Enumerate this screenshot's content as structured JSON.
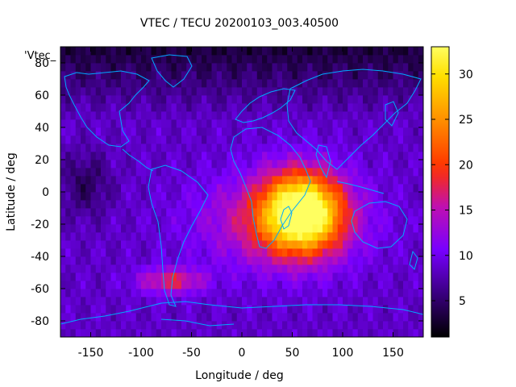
{
  "chart_data": {
    "type": "heatmap",
    "title": "VTEC / TECU 20200103_003.40500",
    "xlabel": "Longitude / deg",
    "ylabel": "Latitude / deg",
    "series_label": "'Vtec_",
    "xlim": [
      -180,
      180
    ],
    "ylim": [
      -90,
      90
    ],
    "xticks": [
      -150,
      -100,
      -50,
      0,
      50,
      100,
      150
    ],
    "yticks": [
      80,
      60,
      40,
      20,
      0,
      -20,
      -40,
      -60,
      -80
    ],
    "colorbar": {
      "range": [
        1,
        33
      ],
      "ticks": [
        5,
        10,
        15,
        20,
        25,
        30
      ],
      "palette": [
        "#000000",
        "#3a0080",
        "#7800ff",
        "#c010b0",
        "#ff3000",
        "#ff9000",
        "#ffe000",
        "#ffff60"
      ],
      "palette_stops": [
        0.0,
        0.15,
        0.3,
        0.45,
        0.58,
        0.75,
        0.9,
        1.0
      ]
    },
    "grid": false,
    "field": {
      "background_tecu": 8.5,
      "polar_north_tecu": 3.0,
      "dark_patch_tecu": 4.0,
      "peak": {
        "lon": 60,
        "lat": -12,
        "tecu": 33
      },
      "southern_band": {
        "lon": -70,
        "lat": -55,
        "tecu": 19
      }
    }
  }
}
